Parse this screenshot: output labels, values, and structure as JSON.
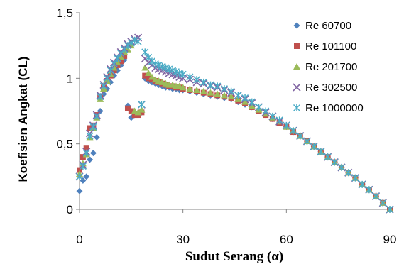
{
  "chart_data": {
    "type": "scatter",
    "xlabel": "Sudut Serang (α)",
    "ylabel": "Koefisien Angkat (CL)",
    "xlim": [
      0,
      90
    ],
    "ylim": [
      0,
      1.5
    ],
    "x_ticks": [
      "0",
      "30",
      "60",
      "90"
    ],
    "y_ticks": [
      "0",
      "0,5",
      "1",
      "1,5"
    ],
    "grid": false,
    "legend_position": "top-right",
    "series": [
      {
        "name": "Re 60700",
        "color": "#4F81BD",
        "marker": "diamond",
        "points": [
          [
            0,
            0.14
          ],
          [
            1,
            0.22
          ],
          [
            2,
            0.25
          ],
          [
            3,
            0.38
          ],
          [
            4,
            0.43
          ],
          [
            5,
            0.55
          ],
          [
            6,
            0.75
          ],
          [
            7,
            0.88
          ],
          [
            8,
            0.92
          ],
          [
            9,
            0.97
          ],
          [
            10,
            1.02
          ],
          [
            11,
            1.06
          ],
          [
            12,
            1.1
          ],
          [
            13,
            1.14
          ],
          [
            14,
            0.79
          ],
          [
            15,
            0.7
          ],
          [
            16,
            0.72
          ],
          [
            17,
            0.72
          ],
          [
            18,
            0.74
          ],
          [
            19,
            1.0
          ],
          [
            20,
            0.98
          ],
          [
            21,
            0.97
          ],
          [
            22,
            0.96
          ],
          [
            23,
            0.95
          ],
          [
            24,
            0.94
          ],
          [
            25,
            0.93
          ],
          [
            26,
            0.93
          ],
          [
            27,
            0.92
          ],
          [
            28,
            0.92
          ],
          [
            29,
            0.91
          ],
          [
            30,
            0.91
          ],
          [
            32,
            0.9
          ],
          [
            34,
            0.89
          ],
          [
            36,
            0.88
          ],
          [
            38,
            0.87
          ],
          [
            40,
            0.86
          ],
          [
            42,
            0.85
          ],
          [
            44,
            0.84
          ],
          [
            46,
            0.82
          ],
          [
            48,
            0.8
          ],
          [
            50,
            0.78
          ],
          [
            52,
            0.75
          ],
          [
            54,
            0.72
          ],
          [
            56,
            0.69
          ],
          [
            58,
            0.66
          ],
          [
            60,
            0.63
          ],
          [
            62,
            0.59
          ],
          [
            64,
            0.56
          ],
          [
            66,
            0.52
          ],
          [
            68,
            0.48
          ],
          [
            70,
            0.44
          ],
          [
            72,
            0.4
          ],
          [
            74,
            0.36
          ],
          [
            76,
            0.32
          ],
          [
            78,
            0.28
          ],
          [
            80,
            0.24
          ],
          [
            82,
            0.19
          ],
          [
            84,
            0.15
          ],
          [
            86,
            0.1
          ],
          [
            88,
            0.05
          ],
          [
            90,
            0.0
          ]
        ]
      },
      {
        "name": "Re 101100",
        "color": "#C0504D",
        "marker": "square",
        "points": [
          [
            0,
            0.3
          ],
          [
            1,
            0.4
          ],
          [
            2,
            0.47
          ],
          [
            3,
            0.62
          ],
          [
            4,
            0.64
          ],
          [
            5,
            0.72
          ],
          [
            6,
            0.86
          ],
          [
            7,
            0.93
          ],
          [
            8,
            0.98
          ],
          [
            9,
            1.02
          ],
          [
            10,
            1.06
          ],
          [
            11,
            1.1
          ],
          [
            12,
            1.13
          ],
          [
            13,
            1.17
          ],
          [
            14,
            0.77
          ],
          [
            15,
            0.75
          ],
          [
            16,
            0.72
          ],
          [
            17,
            0.72
          ],
          [
            18,
            0.74
          ],
          [
            19,
            1.02
          ],
          [
            20,
            1.0
          ],
          [
            21,
            0.99
          ],
          [
            22,
            0.98
          ],
          [
            23,
            0.97
          ],
          [
            24,
            0.96
          ],
          [
            25,
            0.95
          ],
          [
            26,
            0.94
          ],
          [
            27,
            0.94
          ],
          [
            28,
            0.93
          ],
          [
            29,
            0.93
          ],
          [
            30,
            0.92
          ],
          [
            32,
            0.91
          ],
          [
            34,
            0.9
          ],
          [
            36,
            0.89
          ],
          [
            38,
            0.88
          ],
          [
            40,
            0.87
          ],
          [
            42,
            0.86
          ],
          [
            44,
            0.85
          ],
          [
            46,
            0.83
          ],
          [
            48,
            0.81
          ],
          [
            50,
            0.78
          ],
          [
            52,
            0.75
          ],
          [
            54,
            0.72
          ],
          [
            56,
            0.69
          ],
          [
            58,
            0.66
          ],
          [
            60,
            0.63
          ],
          [
            62,
            0.59
          ],
          [
            64,
            0.56
          ],
          [
            66,
            0.52
          ],
          [
            68,
            0.48
          ],
          [
            70,
            0.44
          ],
          [
            72,
            0.4
          ],
          [
            74,
            0.36
          ],
          [
            76,
            0.32
          ],
          [
            78,
            0.28
          ],
          [
            80,
            0.24
          ],
          [
            82,
            0.19
          ],
          [
            84,
            0.15
          ],
          [
            86,
            0.1
          ],
          [
            88,
            0.05
          ],
          [
            90,
            0.0
          ]
        ]
      },
      {
        "name": "Re 201700",
        "color": "#9BBB59",
        "marker": "triangle",
        "points": [
          [
            0,
            0.27
          ],
          [
            1,
            0.35
          ],
          [
            2,
            0.42
          ],
          [
            3,
            0.55
          ],
          [
            4,
            0.62
          ],
          [
            5,
            0.7
          ],
          [
            6,
            0.84
          ],
          [
            7,
            0.92
          ],
          [
            8,
            0.98
          ],
          [
            9,
            1.03
          ],
          [
            10,
            1.08
          ],
          [
            11,
            1.12
          ],
          [
            12,
            1.16
          ],
          [
            13,
            1.2
          ],
          [
            14,
            1.22
          ],
          [
            15,
            1.25
          ],
          [
            16,
            0.75
          ],
          [
            17,
            0.74
          ],
          [
            18,
            0.76
          ],
          [
            19,
            1.08
          ],
          [
            20,
            1.04
          ],
          [
            21,
            1.01
          ],
          [
            22,
            0.99
          ],
          [
            23,
            0.98
          ],
          [
            24,
            0.97
          ],
          [
            25,
            0.96
          ],
          [
            26,
            0.95
          ],
          [
            27,
            0.95
          ],
          [
            28,
            0.94
          ],
          [
            29,
            0.94
          ],
          [
            30,
            0.93
          ],
          [
            32,
            0.92
          ],
          [
            34,
            0.91
          ],
          [
            36,
            0.9
          ],
          [
            38,
            0.89
          ],
          [
            40,
            0.88
          ],
          [
            42,
            0.87
          ],
          [
            44,
            0.86
          ],
          [
            46,
            0.84
          ],
          [
            48,
            0.82
          ],
          [
            50,
            0.79
          ],
          [
            52,
            0.76
          ],
          [
            54,
            0.73
          ],
          [
            56,
            0.7
          ],
          [
            58,
            0.67
          ],
          [
            60,
            0.63
          ],
          [
            62,
            0.6
          ],
          [
            64,
            0.56
          ],
          [
            66,
            0.52
          ],
          [
            68,
            0.48
          ],
          [
            70,
            0.44
          ],
          [
            72,
            0.4
          ],
          [
            74,
            0.36
          ],
          [
            76,
            0.32
          ],
          [
            78,
            0.28
          ],
          [
            80,
            0.24
          ],
          [
            82,
            0.19
          ],
          [
            84,
            0.15
          ],
          [
            86,
            0.1
          ],
          [
            88,
            0.05
          ],
          [
            90,
            0.0
          ]
        ]
      },
      {
        "name": "Re 302500",
        "color": "#8064A2",
        "marker": "x",
        "points": [
          [
            0,
            0.25
          ],
          [
            1,
            0.34
          ],
          [
            2,
            0.44
          ],
          [
            3,
            0.58
          ],
          [
            4,
            0.64
          ],
          [
            5,
            0.72
          ],
          [
            6,
            0.87
          ],
          [
            7,
            0.95
          ],
          [
            8,
            1.01
          ],
          [
            9,
            1.07
          ],
          [
            10,
            1.12
          ],
          [
            11,
            1.16
          ],
          [
            12,
            1.2
          ],
          [
            13,
            1.23
          ],
          [
            14,
            1.26
          ],
          [
            15,
            1.28
          ],
          [
            16,
            1.3
          ],
          [
            17,
            1.31
          ],
          [
            18,
            0.8
          ],
          [
            19,
            1.15
          ],
          [
            20,
            1.12
          ],
          [
            21,
            1.1
          ],
          [
            22,
            1.08
          ],
          [
            23,
            1.07
          ],
          [
            24,
            1.06
          ],
          [
            25,
            1.05
          ],
          [
            26,
            1.04
          ],
          [
            27,
            1.03
          ],
          [
            28,
            1.02
          ],
          [
            29,
            1.01
          ],
          [
            30,
            1.0
          ],
          [
            32,
            0.99
          ],
          [
            34,
            0.97
          ],
          [
            36,
            0.96
          ],
          [
            38,
            0.94
          ],
          [
            40,
            0.93
          ],
          [
            42,
            0.91
          ],
          [
            44,
            0.89
          ],
          [
            46,
            0.87
          ],
          [
            48,
            0.84
          ],
          [
            50,
            0.81
          ],
          [
            52,
            0.78
          ],
          [
            54,
            0.74
          ],
          [
            56,
            0.71
          ],
          [
            58,
            0.67
          ],
          [
            60,
            0.64
          ],
          [
            62,
            0.6
          ],
          [
            64,
            0.56
          ],
          [
            66,
            0.52
          ],
          [
            68,
            0.48
          ],
          [
            70,
            0.44
          ],
          [
            72,
            0.4
          ],
          [
            74,
            0.36
          ],
          [
            76,
            0.32
          ],
          [
            78,
            0.28
          ],
          [
            80,
            0.24
          ],
          [
            82,
            0.19
          ],
          [
            84,
            0.15
          ],
          [
            86,
            0.1
          ],
          [
            88,
            0.05
          ],
          [
            90,
            0.0
          ]
        ]
      },
      {
        "name": "Re 1000000",
        "color": "#4BACC6",
        "marker": "star",
        "points": [
          [
            0,
            0.25
          ],
          [
            1,
            0.33
          ],
          [
            2,
            0.43
          ],
          [
            3,
            0.56
          ],
          [
            4,
            0.63
          ],
          [
            5,
            0.71
          ],
          [
            6,
            0.86
          ],
          [
            7,
            0.94
          ],
          [
            8,
            1.0
          ],
          [
            9,
            1.06
          ],
          [
            10,
            1.11
          ],
          [
            11,
            1.15
          ],
          [
            12,
            1.19
          ],
          [
            13,
            1.22
          ],
          [
            14,
            1.25
          ],
          [
            15,
            1.27
          ],
          [
            16,
            1.29
          ],
          [
            17,
            1.28
          ],
          [
            18,
            0.8
          ],
          [
            19,
            1.2
          ],
          [
            20,
            1.16
          ],
          [
            21,
            1.13
          ],
          [
            22,
            1.11
          ],
          [
            23,
            1.1
          ],
          [
            24,
            1.09
          ],
          [
            25,
            1.08
          ],
          [
            26,
            1.07
          ],
          [
            27,
            1.06
          ],
          [
            28,
            1.05
          ],
          [
            29,
            1.04
          ],
          [
            30,
            1.03
          ],
          [
            32,
            1.01
          ],
          [
            34,
            0.99
          ],
          [
            36,
            0.97
          ],
          [
            38,
            0.95
          ],
          [
            40,
            0.94
          ],
          [
            42,
            0.92
          ],
          [
            44,
            0.9
          ],
          [
            46,
            0.87
          ],
          [
            48,
            0.85
          ],
          [
            50,
            0.82
          ],
          [
            52,
            0.78
          ],
          [
            54,
            0.75
          ],
          [
            56,
            0.71
          ],
          [
            58,
            0.68
          ],
          [
            60,
            0.64
          ],
          [
            62,
            0.6
          ],
          [
            64,
            0.56
          ],
          [
            66,
            0.52
          ],
          [
            68,
            0.48
          ],
          [
            70,
            0.44
          ],
          [
            72,
            0.4
          ],
          [
            74,
            0.36
          ],
          [
            76,
            0.32
          ],
          [
            78,
            0.28
          ],
          [
            80,
            0.24
          ],
          [
            82,
            0.19
          ],
          [
            84,
            0.15
          ],
          [
            86,
            0.1
          ],
          [
            88,
            0.05
          ],
          [
            90,
            0.0
          ]
        ]
      }
    ]
  }
}
